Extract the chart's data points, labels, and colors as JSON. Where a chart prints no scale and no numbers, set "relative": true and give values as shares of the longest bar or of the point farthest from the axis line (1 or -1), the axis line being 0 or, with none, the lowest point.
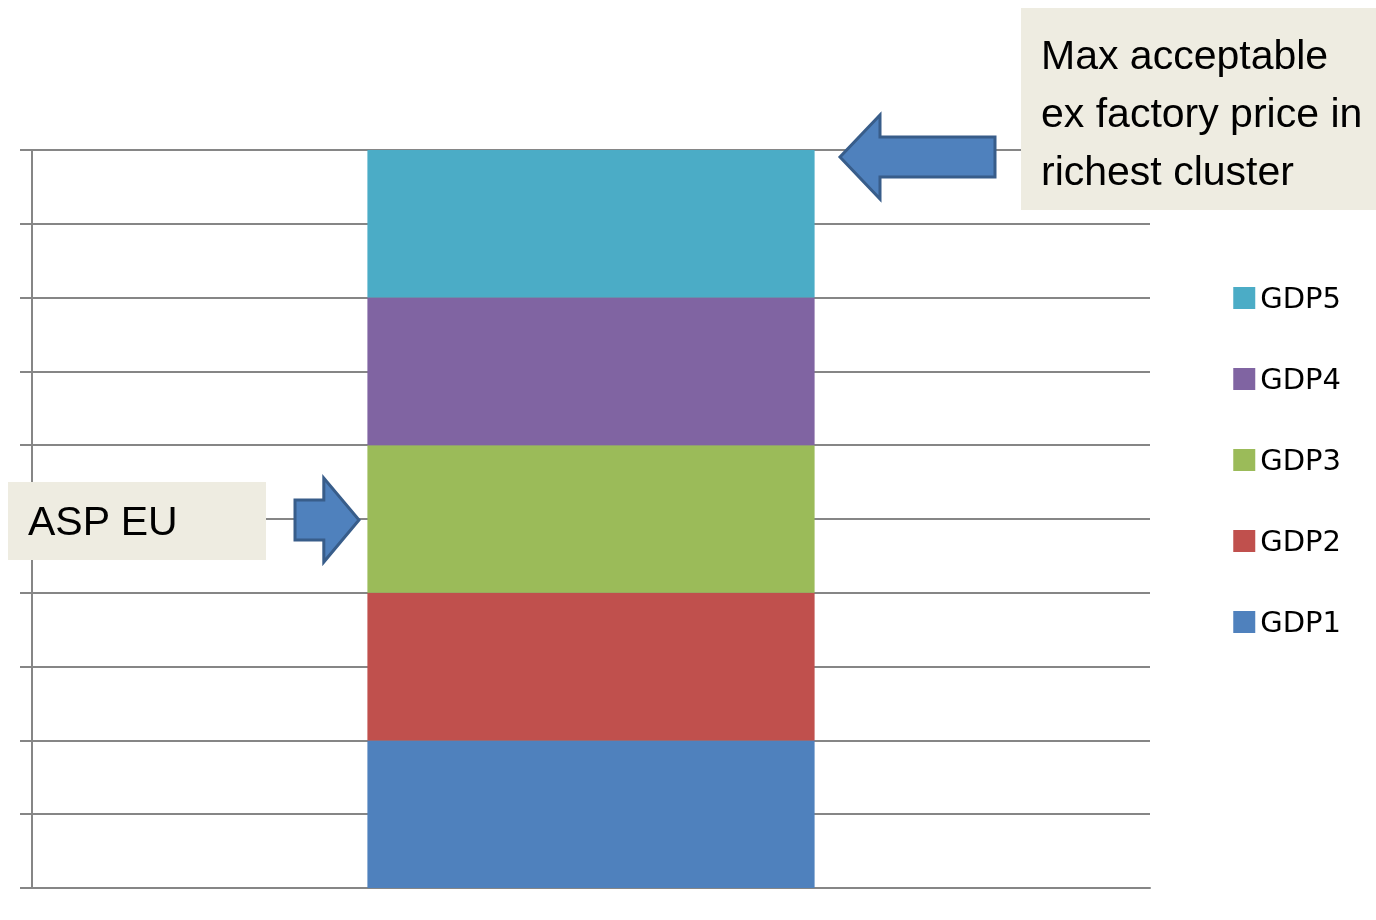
{
  "chart_data": {
    "type": "bar",
    "stacked": true,
    "relative": true,
    "categories": [
      null
    ],
    "series": [
      {
        "name": "GDP1",
        "color": "#4f81bd",
        "values": [
          0.2
        ]
      },
      {
        "name": "GDP2",
        "color": "#c0504d",
        "values": [
          0.2
        ]
      },
      {
        "name": "GDP3",
        "color": "#9bbb59",
        "values": [
          0.2
        ]
      },
      {
        "name": "GDP4",
        "color": "#8064a2",
        "values": [
          0.2
        ]
      },
      {
        "name": "GDP5",
        "color": "#4bacc6",
        "values": [
          0.2
        ]
      }
    ],
    "annotations": [
      "Max acceptable ex factory price in richest cluster",
      "ASP EU"
    ],
    "grid": true,
    "legend": "right"
  }
}
